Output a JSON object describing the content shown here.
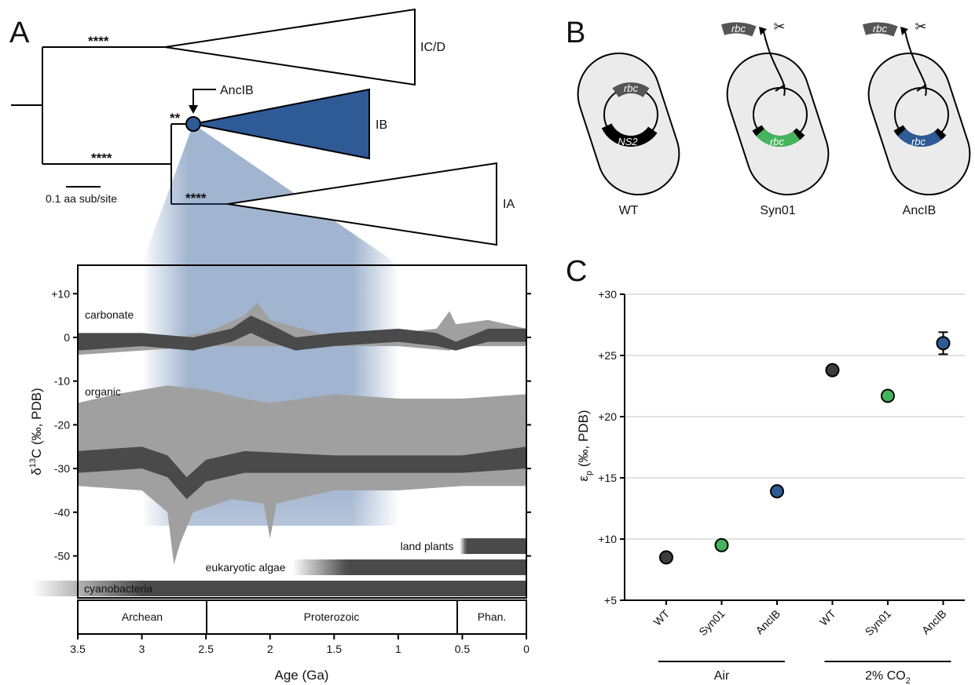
{
  "panels": {
    "a": "A",
    "b": "B",
    "c": "C"
  },
  "tree": {
    "clades": [
      "IC/D",
      "IB",
      "IA"
    ],
    "node_label": "AncIB",
    "support": [
      "****",
      "****",
      "**",
      "****"
    ],
    "scale_label": "0.1 aa sub/site"
  },
  "cells": {
    "labels": [
      "WT",
      "Syn01",
      "AncIB"
    ],
    "gene_rbc": "rbc",
    "gene_ns2": "NS2",
    "scissors": "✂"
  },
  "colors": {
    "ancestral_blue": "#2e5a96",
    "syn_green": "#44b55c",
    "wt_dark": "#3c3c3c",
    "cell_fill": "#ebebeb",
    "band_gray": "#a0a0a0",
    "band_dark": "#4a4a4a"
  },
  "isotope_chart": {
    "ylabel": "δ13C (‰, PDB)",
    "ylabel_parts": {
      "pre": "δ",
      "sup": "13",
      "post": "C (‰, PDB)"
    },
    "xlabel": "Age (Ga)",
    "x_ticks": [
      "3.5",
      "3",
      "2.5",
      "2",
      "1.5",
      "1",
      "0.5",
      "0"
    ],
    "y_ticks": [
      "+10",
      "0",
      "-10",
      "-20",
      "-30",
      "-40",
      "-50"
    ],
    "series_labels": [
      "carbonate",
      "organic"
    ],
    "eons": [
      "Archean",
      "Proterozoic",
      "Phan."
    ],
    "ranges": [
      {
        "label": "land plants",
        "start_ga": 0.47
      },
      {
        "label": "eukaryotic algae",
        "start_ga": 1.4
      },
      {
        "label": "cyanobacteria",
        "start_ga": 3.0
      }
    ]
  },
  "chart_data": {
    "type": "scatter",
    "categories": [
      "WT",
      "Syn01",
      "AncIB",
      "WT",
      "Syn01",
      "AncIB"
    ],
    "groups": [
      {
        "label": "Air",
        "label_parts": {
          "pre": "Air",
          "sub": ""
        }
      },
      {
        "label": "2% CO2",
        "label_parts": {
          "pre": "2% CO",
          "sub": "2"
        }
      }
    ],
    "values": [
      8.5,
      9.5,
      13.9,
      23.8,
      21.7,
      26.0
    ],
    "error": [
      0,
      0,
      0,
      0,
      0,
      0.9
    ],
    "point_colors": [
      "#3c3c3c",
      "#44b55c",
      "#2e5a96",
      "#3c3c3c",
      "#44b55c",
      "#2e5a96"
    ],
    "y_ticks": [
      "+5",
      "+10",
      "+15",
      "+20",
      "+25",
      "+30"
    ],
    "ylim": [
      5,
      30
    ],
    "ylabel": "εp (‰, PDB)",
    "ylabel_parts": {
      "pre": "ε",
      "sub": "p",
      "post": " (‰, PDB)"
    },
    "grid": true
  }
}
